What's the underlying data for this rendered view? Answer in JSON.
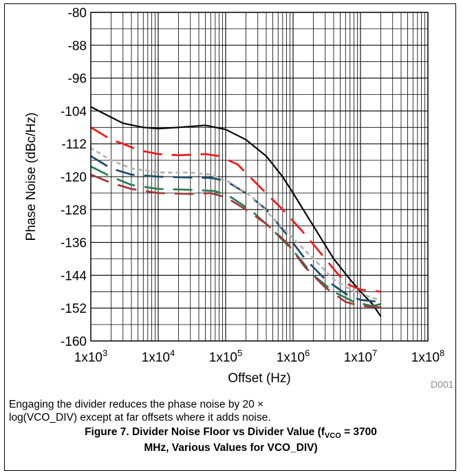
{
  "chart_data": {
    "type": "line",
    "xlabel": "Offset (Hz)",
    "ylabel": "Phase Noise (dBc/Hz)",
    "x_scale": "log",
    "xlim": [
      1000,
      100000000
    ],
    "ylim": [
      -160,
      -80
    ],
    "y_ticks": [
      "-80",
      "-88",
      "-96",
      "-104",
      "-112",
      "-120",
      "-128",
      "-136",
      "-144",
      "-152",
      "-160"
    ],
    "x_ticks": [
      {
        "base": "1x10",
        "exp": "3"
      },
      {
        "base": "1x10",
        "exp": "4"
      },
      {
        "base": "1x10",
        "exp": "5"
      },
      {
        "base": "1x10",
        "exp": "6"
      },
      {
        "base": "1x10",
        "exp": "7"
      },
      {
        "base": "1x10",
        "exp": "8"
      }
    ],
    "grid": true,
    "legend": "none",
    "series": [
      {
        "color": "#000000",
        "dash": "solid",
        "points": [
          [
            1000,
            -103
          ],
          [
            1500,
            -104.5
          ],
          [
            3000,
            -107
          ],
          [
            6000,
            -108
          ],
          [
            10000,
            -108.3
          ],
          [
            20000,
            -108
          ],
          [
            50000,
            -107.5
          ],
          [
            100000,
            -108.5
          ],
          [
            200000,
            -111
          ],
          [
            400000,
            -115
          ],
          [
            700000,
            -120
          ],
          [
            1000000,
            -124
          ],
          [
            2000000,
            -132
          ],
          [
            4000000,
            -140
          ],
          [
            7000000,
            -145
          ],
          [
            10000000,
            -148
          ],
          [
            15000000,
            -151
          ],
          [
            20000000,
            -154
          ]
        ]
      },
      {
        "color": "#ee1c1c",
        "dash": "long-dash",
        "points": [
          [
            1000,
            -108
          ],
          [
            2000,
            -111
          ],
          [
            3000,
            -112
          ],
          [
            5000,
            -113.5
          ],
          [
            10000,
            -114.5
          ],
          [
            20000,
            -114.8
          ],
          [
            50000,
            -114.5
          ],
          [
            80000,
            -115
          ],
          [
            150000,
            -117
          ],
          [
            300000,
            -122
          ],
          [
            700000,
            -128
          ],
          [
            1500000,
            -134
          ],
          [
            3000000,
            -140
          ],
          [
            6000000,
            -146
          ],
          [
            10000000,
            -147.5
          ],
          [
            20000000,
            -148
          ]
        ]
      },
      {
        "color": "#1f4e6b",
        "dash": "long-dash",
        "points": [
          [
            1000,
            -115
          ],
          [
            2000,
            -118
          ],
          [
            4000,
            -119.5
          ],
          [
            10000,
            -120
          ],
          [
            30000,
            -120.2
          ],
          [
            60000,
            -120.3
          ],
          [
            100000,
            -121
          ],
          [
            200000,
            -124
          ],
          [
            400000,
            -128
          ],
          [
            800000,
            -134
          ],
          [
            1500000,
            -140
          ],
          [
            3000000,
            -145
          ],
          [
            6000000,
            -148.5
          ],
          [
            10000000,
            -150
          ],
          [
            20000000,
            -150.5
          ]
        ]
      },
      {
        "color": "#2e7d4f",
        "dash": "long-dash",
        "points": [
          [
            1000,
            -117.5
          ],
          [
            2000,
            -120
          ],
          [
            4000,
            -122
          ],
          [
            10000,
            -123
          ],
          [
            30000,
            -123.2
          ],
          [
            70000,
            -123.5
          ],
          [
            120000,
            -125
          ],
          [
            250000,
            -128.5
          ],
          [
            500000,
            -133
          ],
          [
            1000000,
            -138
          ],
          [
            2000000,
            -144
          ],
          [
            4000000,
            -148
          ],
          [
            8000000,
            -150.5
          ],
          [
            15000000,
            -151.5
          ],
          [
            20000000,
            -151
          ]
        ]
      },
      {
        "color": "#9e3b3b",
        "dash": "long-dash",
        "points": [
          [
            1000,
            -119.5
          ],
          [
            2000,
            -121.5
          ],
          [
            4000,
            -123
          ],
          [
            10000,
            -124
          ],
          [
            30000,
            -124.2
          ],
          [
            60000,
            -124
          ],
          [
            100000,
            -125
          ],
          [
            200000,
            -128
          ],
          [
            400000,
            -131.5
          ],
          [
            800000,
            -136
          ],
          [
            1500000,
            -142
          ],
          [
            3000000,
            -147
          ],
          [
            6000000,
            -150.5
          ],
          [
            10000000,
            -151.5
          ],
          [
            20000000,
            -151.8
          ]
        ]
      },
      {
        "color": "#b3b3b3",
        "dash": "dotted",
        "points": [
          [
            1000,
            -113
          ],
          [
            2000,
            -116
          ],
          [
            4000,
            -118
          ],
          [
            10000,
            -119
          ],
          [
            30000,
            -119
          ],
          [
            60000,
            -119.5
          ],
          [
            120000,
            -121.5
          ],
          [
            250000,
            -125
          ],
          [
            500000,
            -130
          ],
          [
            1000000,
            -135
          ],
          [
            2000000,
            -140
          ],
          [
            4000000,
            -145
          ],
          [
            8000000,
            -148
          ],
          [
            15000000,
            -149.5
          ],
          [
            20000000,
            -150
          ]
        ]
      }
    ]
  },
  "watermark": "D001",
  "note_line1": "Engaging the divider reduces the phase noise by 20 ×",
  "note_line2": "log(VCO_DIV) except at far offsets where it adds noise.",
  "caption": {
    "prefix": "Figure 7. Divider Noise Floor vs Divider Value (f",
    "sub": "VCO",
    "suffix": " = 3700",
    "line2": "MHz, Various Values for VCO_DIV)"
  }
}
